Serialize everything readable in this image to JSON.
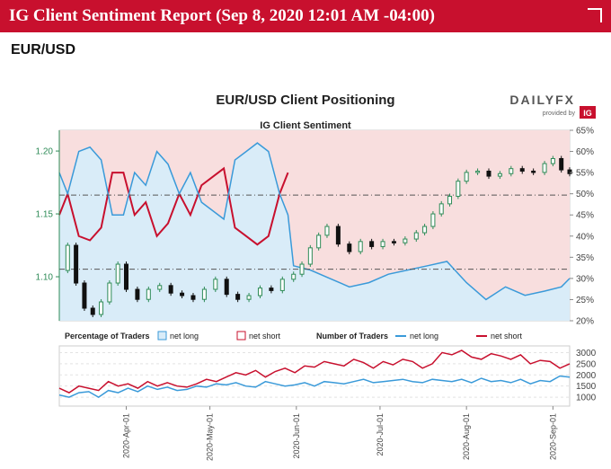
{
  "header": {
    "title": "IG Client Sentiment Report (Sep 8, 2020 12:01 AM -04:00)"
  },
  "pair": "EUR/USD",
  "brand": {
    "name": "DAILYFX",
    "provided_by": "provided by",
    "ig": "IG"
  },
  "colors": {
    "header": "#c8102e",
    "net_long": "#3a9ad9",
    "net_short": "#c8102e",
    "long_fill": "#d9ecf8",
    "short_fill": "#f8dede",
    "candle_up": "#2e8b57",
    "candle_down": "#111111"
  },
  "chart_data": {
    "type": "line",
    "title": "EUR/USD Client Positioning",
    "subtitle": "IG Client Sentiment",
    "price_axis": {
      "ticks": [
        "1.10",
        "1.15",
        "1.20"
      ],
      "values": [
        1.1,
        1.15,
        1.2
      ],
      "range": [
        1.065,
        1.2165
      ]
    },
    "pct_axis": {
      "ticks": [
        "20%",
        "25%",
        "30%",
        "35%",
        "40%",
        "45%",
        "50%",
        "55%",
        "60%",
        "65%"
      ],
      "range": [
        20,
        65
      ]
    },
    "reference_lines": [
      1.165,
      1.106
    ],
    "price": {
      "x": [
        "2020-03-08",
        "2020-03-11",
        "2020-03-14",
        "2020-03-17",
        "2020-03-20",
        "2020-03-23",
        "2020-03-26",
        "2020-03-29",
        "2020-04-01",
        "2020-04-05",
        "2020-04-09",
        "2020-04-13",
        "2020-04-17",
        "2020-04-21",
        "2020-04-25",
        "2020-04-29",
        "2020-05-03",
        "2020-05-07",
        "2020-05-11",
        "2020-05-15",
        "2020-05-19",
        "2020-05-23",
        "2020-05-27",
        "2020-05-31",
        "2020-06-03",
        "2020-06-06",
        "2020-06-09",
        "2020-06-12",
        "2020-06-16",
        "2020-06-20",
        "2020-06-24",
        "2020-06-28",
        "2020-07-02",
        "2020-07-06",
        "2020-07-10",
        "2020-07-14",
        "2020-07-17",
        "2020-07-20",
        "2020-07-23",
        "2020-07-26",
        "2020-07-29",
        "2020-08-01",
        "2020-08-05",
        "2020-08-09",
        "2020-08-13",
        "2020-08-17",
        "2020-08-21",
        "2020-08-25",
        "2020-08-29",
        "2020-09-01",
        "2020-09-04",
        "2020-09-07"
      ],
      "values": [
        1.105,
        1.125,
        1.095,
        1.075,
        1.07,
        1.08,
        1.095,
        1.11,
        1.09,
        1.082,
        1.09,
        1.093,
        1.087,
        1.085,
        1.082,
        1.09,
        1.098,
        1.086,
        1.082,
        1.085,
        1.091,
        1.089,
        1.098,
        1.102,
        1.11,
        1.123,
        1.133,
        1.14,
        1.126,
        1.12,
        1.128,
        1.124,
        1.128,
        1.127,
        1.13,
        1.135,
        1.14,
        1.15,
        1.158,
        1.164,
        1.176,
        1.183,
        1.184,
        1.18,
        1.182,
        1.186,
        1.184,
        1.183,
        1.19,
        1.194,
        1.185,
        1.182
      ]
    },
    "percent_long": {
      "x": [
        "2020-03-08",
        "2020-03-11",
        "2020-03-15",
        "2020-03-19",
        "2020-03-23",
        "2020-03-27",
        "2020-03-31",
        "2020-04-04",
        "2020-04-08",
        "2020-04-12",
        "2020-04-16",
        "2020-04-20",
        "2020-04-24",
        "2020-04-28",
        "2020-05-02",
        "2020-05-06",
        "2020-05-10",
        "2020-05-14",
        "2020-05-18",
        "2020-05-22",
        "2020-05-26",
        "2020-05-29",
        "2020-05-31",
        "2020-06-06",
        "2020-06-13",
        "2020-06-20",
        "2020-06-27",
        "2020-07-04",
        "2020-07-11",
        "2020-07-18",
        "2020-07-25",
        "2020-08-01",
        "2020-08-08",
        "2020-08-15",
        "2020-08-22",
        "2020-08-29",
        "2020-09-04",
        "2020-09-07"
      ],
      "values": [
        55,
        50,
        60,
        61,
        58,
        45,
        45,
        55,
        52,
        60,
        57,
        50,
        55,
        48,
        46,
        44,
        58,
        60,
        62,
        60,
        50,
        45,
        33,
        32,
        30,
        28,
        29,
        31,
        32,
        33,
        34,
        29,
        25,
        28,
        26,
        27,
        28,
        30
      ]
    },
    "lower_panel": {
      "x_ticks": [
        "2020-Apr-01",
        "2020-May-01",
        "2020-Jun-01",
        "2020-Jul-01",
        "2020-Aug-01",
        "2020-Sep-01"
      ],
      "y_ticks": [
        "1000",
        "1500",
        "2000",
        "2500",
        "3000"
      ],
      "y_range": [
        600,
        3300
      ],
      "legend": {
        "pct_label": "Percentage of Traders",
        "num_label": "Number of Traders",
        "long": "net long",
        "short": "net short"
      },
      "net_long": [
        1100,
        1000,
        1200,
        1250,
        1000,
        1300,
        1200,
        1400,
        1250,
        1500,
        1350,
        1450,
        1300,
        1350,
        1500,
        1450,
        1600,
        1550,
        1650,
        1500,
        1450,
        1700,
        1600,
        1500,
        1550,
        1650,
        1500,
        1700,
        1650,
        1600,
        1700,
        1800,
        1650,
        1700,
        1750,
        1800,
        1700,
        1650,
        1800,
        1750,
        1700,
        1800,
        1650,
        1850,
        1700,
        1750,
        1650,
        1800,
        1600,
        1750,
        1700,
        1950,
        1900
      ],
      "net_short": [
        1400,
        1200,
        1500,
        1400,
        1300,
        1700,
        1500,
        1600,
        1400,
        1700,
        1500,
        1650,
        1500,
        1450,
        1600,
        1800,
        1700,
        1900,
        2100,
        2000,
        2200,
        1900,
        2150,
        2300,
        2100,
        2400,
        2350,
        2600,
        2500,
        2400,
        2700,
        2550,
        2300,
        2600,
        2450,
        2700,
        2600,
        2300,
        2500,
        3000,
        2900,
        3100,
        2800,
        2700,
        2950,
        2850,
        2700,
        2900,
        2500,
        2650,
        2600,
        2300,
        2500
      ]
    }
  }
}
